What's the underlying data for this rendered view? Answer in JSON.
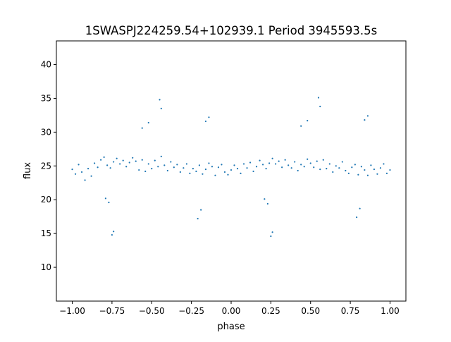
{
  "chart_data": {
    "type": "scatter",
    "title": "1SWASPJ224259.54+102939.1 Period 3945593.5s",
    "xlabel": "phase",
    "ylabel": "flux",
    "xlim": [
      -1.1,
      1.1
    ],
    "ylim": [
      5.0,
      43.5
    ],
    "xticks": [
      -1.0,
      -0.75,
      -0.5,
      -0.25,
      0.0,
      0.25,
      0.5,
      0.75,
      1.0
    ],
    "xtick_labels": [
      "−1.00",
      "−0.75",
      "−0.50",
      "−0.25",
      "0.00",
      "0.25",
      "0.50",
      "0.75",
      "1.00"
    ],
    "yticks": [
      10,
      15,
      20,
      25,
      30,
      35,
      40
    ],
    "ytick_labels": [
      "10",
      "15",
      "20",
      "25",
      "30",
      "35",
      "40"
    ],
    "grid": false,
    "marker_color": "#1f77b4",
    "series": [
      {
        "x": [
          -1.0,
          -0.98,
          -0.96,
          -0.94,
          -0.92,
          -0.9,
          -0.88,
          -0.86,
          -0.84,
          -0.82,
          -0.8,
          -0.78,
          -0.76,
          -0.74,
          -0.72,
          -0.7,
          -0.68,
          -0.66,
          -0.64,
          -0.62,
          -0.6,
          -0.58,
          -0.56,
          -0.54,
          -0.52,
          -0.5,
          -0.48,
          -0.46,
          -0.44,
          -0.42,
          -0.4,
          -0.38,
          -0.36,
          -0.34,
          -0.32,
          -0.3,
          -0.28,
          -0.26,
          -0.24,
          -0.22,
          -0.2,
          -0.18,
          -0.16,
          -0.14,
          -0.12,
          -0.1,
          -0.08,
          -0.06,
          -0.04,
          -0.02,
          0.0,
          0.02,
          0.04,
          0.06,
          0.08,
          0.1,
          0.12,
          0.14,
          0.16,
          0.18,
          0.2,
          0.22,
          0.24,
          0.26,
          0.28,
          0.3,
          0.32,
          0.34,
          0.36,
          0.38,
          0.4,
          0.42,
          0.44,
          0.46,
          0.48,
          0.5,
          0.52,
          0.54,
          0.56,
          0.58,
          0.6,
          0.62,
          0.64,
          0.66,
          0.68,
          0.7,
          0.72,
          0.74,
          0.76,
          0.78,
          0.8,
          0.82,
          0.84,
          0.86,
          0.88,
          0.9,
          0.92,
          0.94,
          0.96,
          0.98,
          1.0,
          -0.79,
          -0.77,
          -0.75,
          -0.74,
          -0.21,
          -0.19,
          0.21,
          0.23,
          0.25,
          0.26,
          0.79,
          0.81,
          -0.45,
          -0.44,
          0.55,
          0.56,
          -0.56,
          -0.52,
          0.44,
          0.48,
          -0.16,
          -0.14,
          0.84,
          0.86
        ],
        "y": [
          24.5,
          23.8,
          25.2,
          24.1,
          22.9,
          24.6,
          23.5,
          25.4,
          24.8,
          25.9,
          26.3,
          25.1,
          24.7,
          25.6,
          26.1,
          25.3,
          25.8,
          24.9,
          25.5,
          26.2,
          25.7,
          24.4,
          25.9,
          24.2,
          25.3,
          24.6,
          25.8,
          24.9,
          26.4,
          25.1,
          24.3,
          25.6,
          24.8,
          25.2,
          24.1,
          24.7,
          25.3,
          23.9,
          24.6,
          24.2,
          25.1,
          23.8,
          24.5,
          25.4,
          24.9,
          23.6,
          24.8,
          25.2,
          24.1,
          23.7,
          24.4,
          25.1,
          24.6,
          23.9,
          25.3,
          24.7,
          25.5,
          24.2,
          24.9,
          25.8,
          25.2,
          24.6,
          25.4,
          26.1,
          25.3,
          25.7,
          24.8,
          25.9,
          25.1,
          24.7,
          25.6,
          24.3,
          25.2,
          24.9,
          26.0,
          25.4,
          24.8,
          25.7,
          24.5,
          25.9,
          24.6,
          25.3,
          24.1,
          25.0,
          24.7,
          25.6,
          24.3,
          23.9,
          24.8,
          25.2,
          23.7,
          24.9,
          24.4,
          23.6,
          25.1,
          24.5,
          23.8,
          24.7,
          25.3,
          23.9,
          24.4,
          20.2,
          19.6,
          14.8,
          15.3,
          17.2,
          18.5,
          20.1,
          19.4,
          14.6,
          15.2,
          17.4,
          18.7,
          34.8,
          33.5,
          35.1,
          33.8,
          30.6,
          31.4,
          30.9,
          31.7,
          31.6,
          32.2,
          31.8,
          32.4
        ]
      }
    ]
  }
}
